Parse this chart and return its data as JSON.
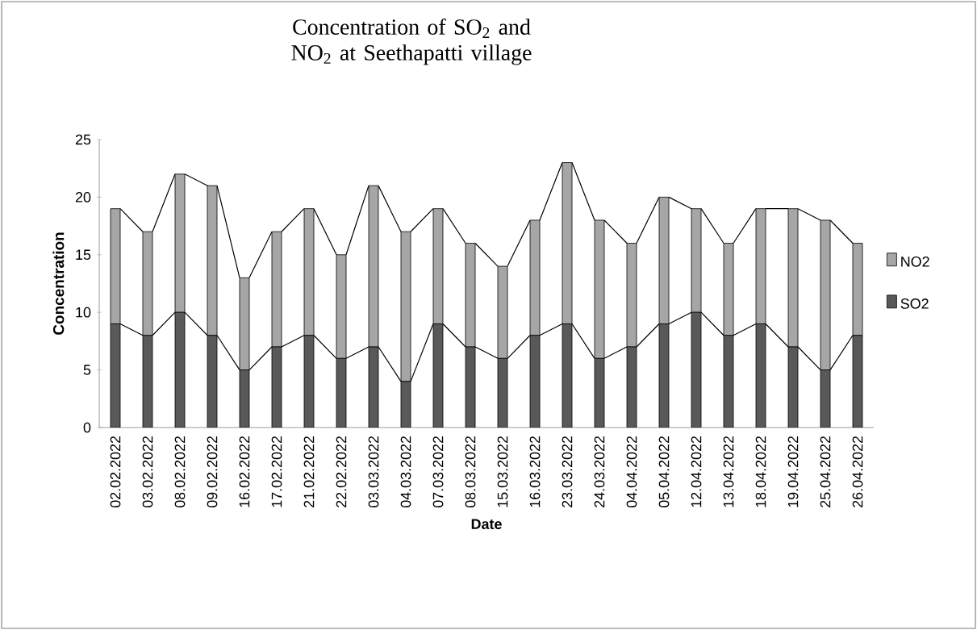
{
  "chart_data": {
    "type": "bar",
    "stacked": true,
    "title": "Concentration of SO$_{2}$ and NO$_{2}$ at Seethapatti  village",
    "xlabel": "Date",
    "ylabel": "Concentration",
    "categories": [
      "02.02.2022",
      "03.02.2022",
      "08.02.2022",
      "09.02.2022",
      "16.02.2022",
      "17.02.2022",
      "21.02.2022",
      "22.02.2022",
      "03.03.2022",
      "04.03.2022",
      "07.03.2022",
      "08.03.2022",
      "15.03.2022",
      "16.03.2022",
      "23.03.2022",
      "24.03.2022",
      "04.04.2022",
      "05.04.2022",
      "12.04.2022",
      "13.04.2022",
      "18.04.2022",
      "19.04.2022",
      "25.04.2022",
      "26.04.2022"
    ],
    "series": [
      {
        "name": "SO2",
        "color": "#595959",
        "values": [
          9,
          8,
          10,
          8,
          5,
          7,
          8,
          6,
          7,
          4,
          9,
          7,
          6,
          8,
          9,
          6,
          7,
          9,
          10,
          8,
          9,
          7,
          5,
          8
        ]
      },
      {
        "name": "NO2",
        "color": "#a6a6a6",
        "values": [
          10,
          9,
          12,
          13,
          8,
          10,
          11,
          9,
          14,
          13,
          10,
          9,
          8,
          10,
          14,
          12,
          9,
          11,
          9,
          8,
          10,
          12,
          13,
          8
        ]
      }
    ],
    "ylim": [
      0,
      25
    ],
    "yticks": [
      0,
      5,
      10,
      15,
      20,
      25
    ],
    "legend": "right"
  }
}
